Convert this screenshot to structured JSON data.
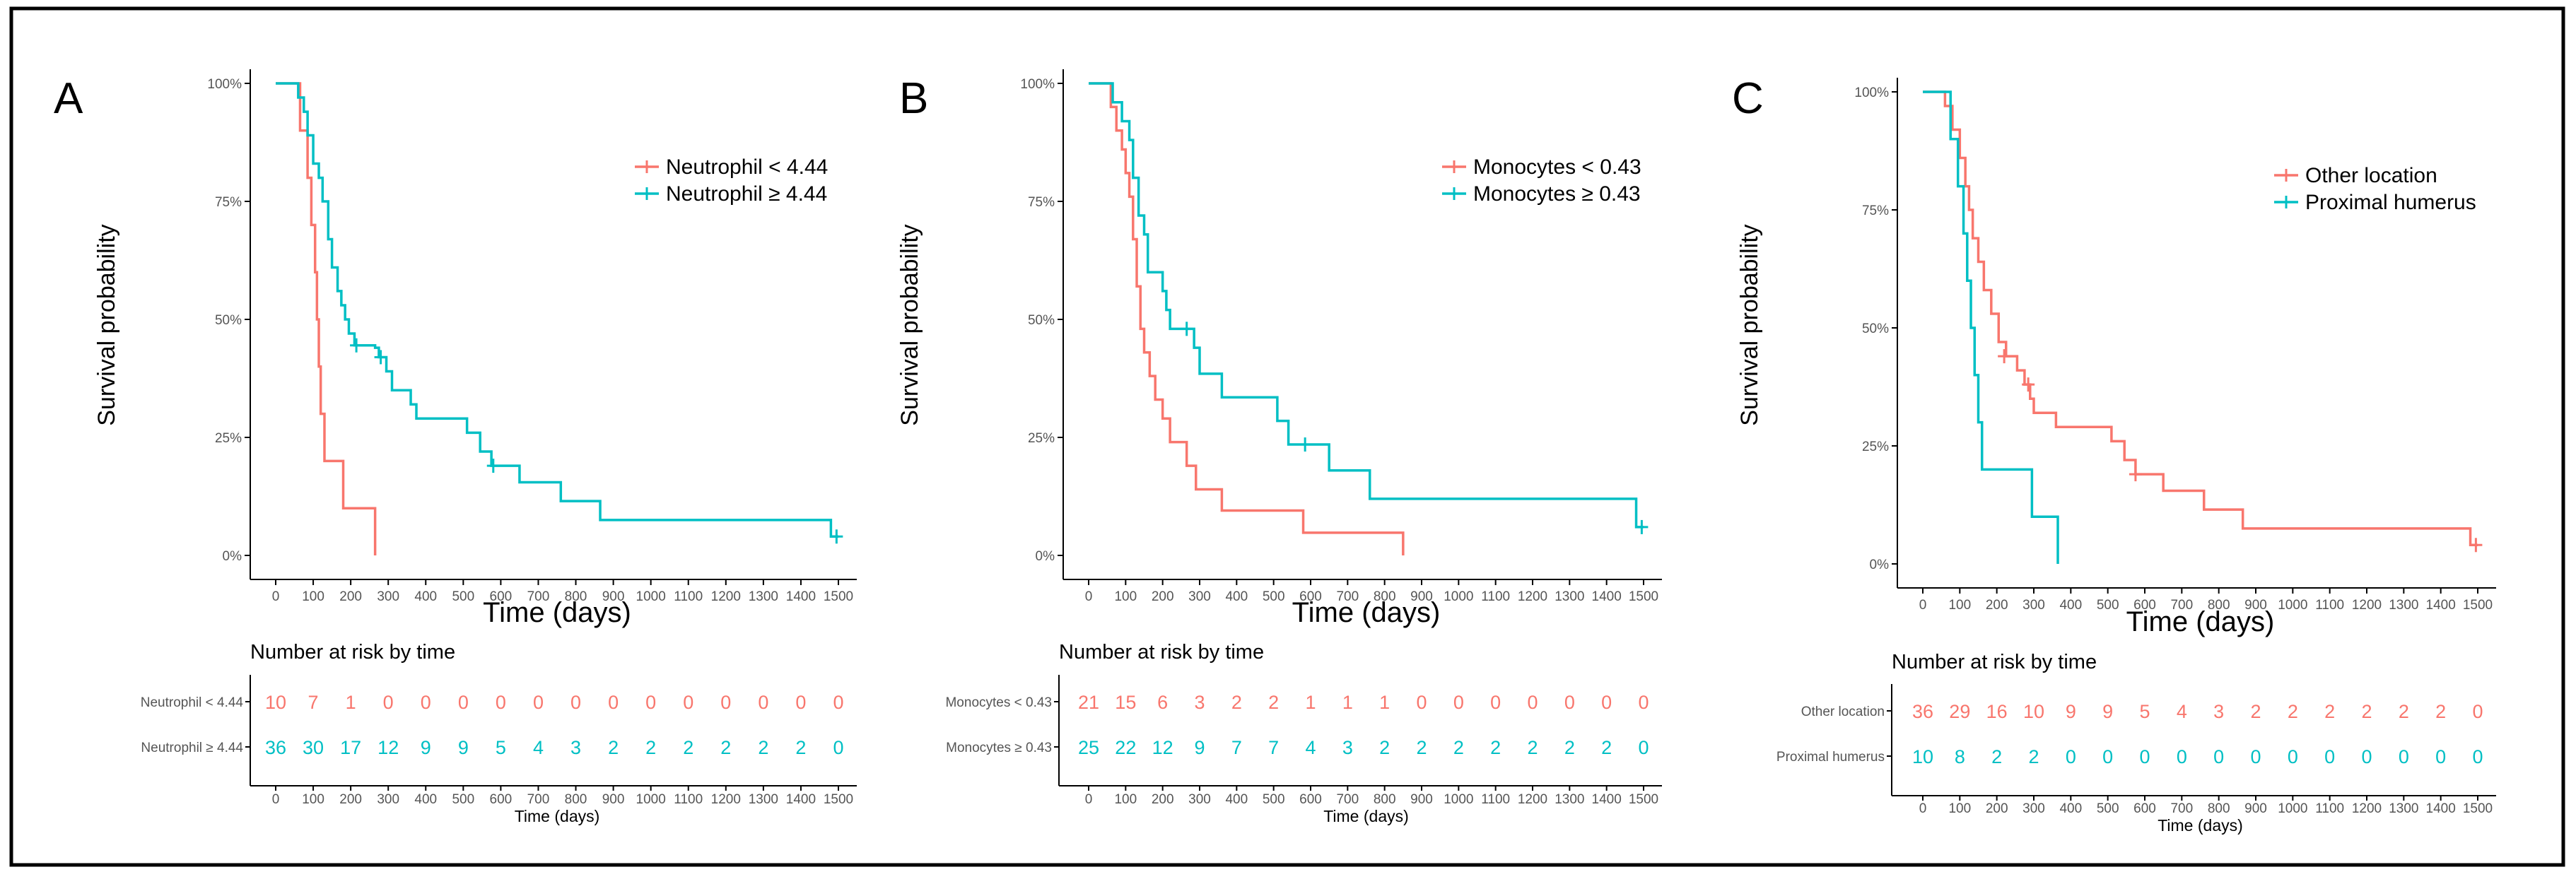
{
  "colors": {
    "red": "#F8766D",
    "cyan": "#00BFC4",
    "axis": "#000000",
    "tick": "#555555"
  },
  "chart_data": [
    {
      "type": "line",
      "panel_label": "A",
      "ylabel": "Survival probability",
      "xlabel": "Time (days)",
      "xlim": [
        0,
        1500
      ],
      "ylim": [
        0,
        1
      ],
      "xticks": [
        "0",
        "100",
        "200",
        "300",
        "400",
        "500",
        "600",
        "700",
        "800",
        "900",
        "1000",
        "1100",
        "1200",
        "1300",
        "1400",
        "1500"
      ],
      "yticks": [
        "0%",
        "25%",
        "50%",
        "75%",
        "100%"
      ],
      "legend_position": "top-right",
      "series": [
        {
          "name": "Neutrophil < 4.44",
          "color_key": "red",
          "steps": [
            [
              0,
              1
            ],
            [
              65,
              0.9
            ],
            [
              85,
              0.8
            ],
            [
              95,
              0.7
            ],
            [
              105,
              0.6
            ],
            [
              110,
              0.5
            ],
            [
              115,
              0.4
            ],
            [
              120,
              0.3
            ],
            [
              130,
              0.2
            ],
            [
              180,
              0.1
            ],
            [
              265,
              0.0
            ]
          ],
          "end": 265,
          "censor": []
        },
        {
          "name": "Neutrophil ≥ 4.44",
          "color_key": "cyan",
          "steps": [
            [
              0,
              1
            ],
            [
              60,
              0.97
            ],
            [
              75,
              0.94
            ],
            [
              85,
              0.89
            ],
            [
              100,
              0.83
            ],
            [
              115,
              0.8
            ],
            [
              125,
              0.75
            ],
            [
              140,
              0.67
            ],
            [
              150,
              0.61
            ],
            [
              165,
              0.56
            ],
            [
              175,
              0.53
            ],
            [
              185,
              0.5
            ],
            [
              195,
              0.47
            ],
            [
              210,
              0.445
            ],
            [
              265,
              0.44
            ],
            [
              275,
              0.42
            ],
            [
              295,
              0.39
            ],
            [
              310,
              0.35
            ],
            [
              360,
              0.32
            ],
            [
              375,
              0.29
            ],
            [
              510,
              0.26
            ],
            [
              545,
              0.22
            ],
            [
              575,
              0.19
            ],
            [
              650,
              0.155
            ],
            [
              760,
              0.115
            ],
            [
              865,
              0.075
            ],
            [
              1480,
              0.04
            ]
          ],
          "end": 1500,
          "censor": [
            [
              215,
              0.445
            ],
            [
              280,
              0.42
            ],
            [
              580,
              0.19
            ],
            [
              1495,
              0.04
            ]
          ]
        }
      ],
      "risk_table": {
        "title": "Number at risk by time",
        "xlabel": "Time (days)",
        "rows": [
          {
            "label": "Neutrophil < 4.44",
            "color_key": "red",
            "values": [
              "10",
              "7",
              "1",
              "0",
              "0",
              "0",
              "0",
              "0",
              "0",
              "0",
              "0",
              "0",
              "0",
              "0",
              "0",
              "0"
            ]
          },
          {
            "label": "Neutrophil ≥ 4.44",
            "color_key": "cyan",
            "values": [
              "36",
              "30",
              "17",
              "12",
              "9",
              "9",
              "5",
              "4",
              "3",
              "2",
              "2",
              "2",
              "2",
              "2",
              "2",
              "0"
            ]
          }
        ]
      }
    },
    {
      "type": "line",
      "panel_label": "B",
      "ylabel": "Survival probability",
      "xlabel": "Time (days)",
      "xlim": [
        0,
        1500
      ],
      "ylim": [
        0,
        1
      ],
      "xticks": [
        "0",
        "100",
        "200",
        "300",
        "400",
        "500",
        "600",
        "700",
        "800",
        "900",
        "1000",
        "1100",
        "1200",
        "1300",
        "1400",
        "1500"
      ],
      "yticks": [
        "0%",
        "25%",
        "50%",
        "75%",
        "100%"
      ],
      "legend_position": "top-right",
      "series": [
        {
          "name": "Monocytes < 0.43",
          "color_key": "red",
          "steps": [
            [
              0,
              1
            ],
            [
              60,
              0.95
            ],
            [
              75,
              0.9
            ],
            [
              90,
              0.86
            ],
            [
              100,
              0.81
            ],
            [
              110,
              0.76
            ],
            [
              120,
              0.67
            ],
            [
              130,
              0.57
            ],
            [
              140,
              0.48
            ],
            [
              150,
              0.43
            ],
            [
              165,
              0.38
            ],
            [
              180,
              0.33
            ],
            [
              200,
              0.29
            ],
            [
              220,
              0.24
            ],
            [
              265,
              0.19
            ],
            [
              290,
              0.14
            ],
            [
              360,
              0.095
            ],
            [
              580,
              0.048
            ],
            [
              850,
              0.0
            ]
          ],
          "end": 850,
          "censor": []
        },
        {
          "name": "Monocytes ≥ 0.43",
          "color_key": "cyan",
          "steps": [
            [
              0,
              1
            ],
            [
              65,
              0.96
            ],
            [
              90,
              0.92
            ],
            [
              110,
              0.88
            ],
            [
              120,
              0.8
            ],
            [
              135,
              0.72
            ],
            [
              150,
              0.68
            ],
            [
              160,
              0.6
            ],
            [
              200,
              0.56
            ],
            [
              210,
              0.52
            ],
            [
              220,
              0.48
            ],
            [
              285,
              0.44
            ],
            [
              300,
              0.385
            ],
            [
              360,
              0.335
            ],
            [
              510,
              0.285
            ],
            [
              540,
              0.235
            ],
            [
              650,
              0.18
            ],
            [
              760,
              0.12
            ],
            [
              1480,
              0.06
            ]
          ],
          "end": 1500,
          "censor": [
            [
              265,
              0.48
            ],
            [
              585,
              0.235
            ],
            [
              1495,
              0.06
            ]
          ]
        }
      ],
      "risk_table": {
        "title": "Number at risk by time",
        "xlabel": "Time (days)",
        "rows": [
          {
            "label": "Monocytes < 0.43",
            "color_key": "red",
            "values": [
              "21",
              "15",
              "6",
              "3",
              "2",
              "2",
              "1",
              "1",
              "1",
              "0",
              "0",
              "0",
              "0",
              "0",
              "0",
              "0"
            ]
          },
          {
            "label": "Monocytes ≥ 0.43",
            "color_key": "cyan",
            "values": [
              "25",
              "22",
              "12",
              "9",
              "7",
              "7",
              "4",
              "3",
              "2",
              "2",
              "2",
              "2",
              "2",
              "2",
              "2",
              "0"
            ]
          }
        ]
      }
    },
    {
      "type": "line",
      "panel_label": "C",
      "ylabel": "Survival probability",
      "xlabel": "Time (days)",
      "xlim": [
        0,
        1500
      ],
      "ylim": [
        0,
        1
      ],
      "xticks": [
        "0",
        "100",
        "200",
        "300",
        "400",
        "500",
        "600",
        "700",
        "800",
        "900",
        "1000",
        "1100",
        "1200",
        "1300",
        "1400",
        "1500"
      ],
      "yticks": [
        "0%",
        "25%",
        "50%",
        "75%",
        "100%"
      ],
      "legend_position": "top-right",
      "series": [
        {
          "name": "Other location",
          "color_key": "red",
          "steps": [
            [
              0,
              1
            ],
            [
              60,
              0.97
            ],
            [
              80,
              0.92
            ],
            [
              100,
              0.86
            ],
            [
              115,
              0.8
            ],
            [
              125,
              0.75
            ],
            [
              135,
              0.69
            ],
            [
              150,
              0.64
            ],
            [
              165,
              0.58
            ],
            [
              185,
              0.53
            ],
            [
              205,
              0.47
            ],
            [
              225,
              0.44
            ],
            [
              255,
              0.41
            ],
            [
              275,
              0.38
            ],
            [
              290,
              0.35
            ],
            [
              300,
              0.32
            ],
            [
              360,
              0.29
            ],
            [
              510,
              0.26
            ],
            [
              545,
              0.22
            ],
            [
              575,
              0.19
            ],
            [
              650,
              0.155
            ],
            [
              760,
              0.115
            ],
            [
              865,
              0.075
            ],
            [
              1480,
              0.04
            ]
          ],
          "end": 1500,
          "censor": [
            [
              220,
              0.44
            ],
            [
              285,
              0.38
            ],
            [
              575,
              0.19
            ],
            [
              1495,
              0.04
            ]
          ]
        },
        {
          "name": "Proximal humerus",
          "color_key": "cyan",
          "steps": [
            [
              0,
              1
            ],
            [
              75,
              0.9
            ],
            [
              95,
              0.8
            ],
            [
              110,
              0.7
            ],
            [
              120,
              0.6
            ],
            [
              130,
              0.5
            ],
            [
              140,
              0.4
            ],
            [
              150,
              0.3
            ],
            [
              160,
              0.2
            ],
            [
              295,
              0.1
            ],
            [
              365,
              0.0
            ]
          ],
          "end": 365,
          "censor": []
        }
      ],
      "risk_table": {
        "title": "Number at risk by time",
        "xlabel": "Time (days)",
        "rows": [
          {
            "label": "Other location",
            "color_key": "red",
            "values": [
              "36",
              "29",
              "16",
              "10",
              "9",
              "9",
              "5",
              "4",
              "3",
              "2",
              "2",
              "2",
              "2",
              "2",
              "2",
              "0"
            ]
          },
          {
            "label": "Proximal humerus",
            "color_key": "cyan",
            "values": [
              "10",
              "8",
              "2",
              "2",
              "0",
              "0",
              "0",
              "0",
              "0",
              "0",
              "0",
              "0",
              "0",
              "0",
              "0",
              "0"
            ]
          }
        ]
      }
    }
  ]
}
